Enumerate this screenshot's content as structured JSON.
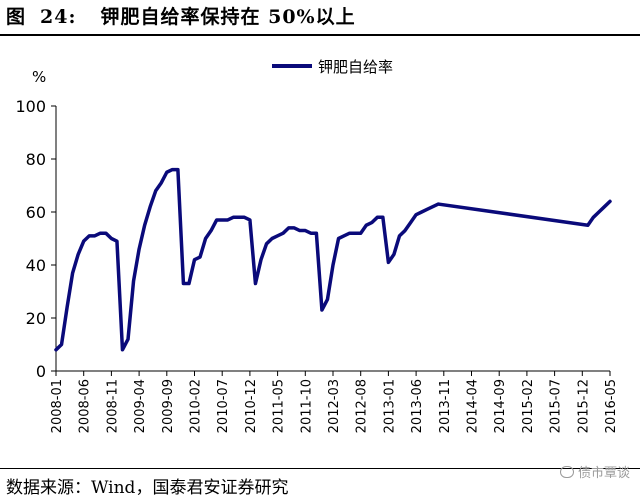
{
  "header": {
    "figure_label": "图",
    "figure_number": "24:",
    "title_text": "钾肥自给率保持在 50%以上"
  },
  "footer": {
    "source": "数据来源：Wind，国泰君安证券研究",
    "watermark": "债市覃谈"
  },
  "colors": {
    "series": "#0a0a7a",
    "axis": "#000000"
  },
  "chart_data": {
    "type": "line",
    "title": "",
    "xlabel": "",
    "ylabel": "%",
    "ylim": [
      0,
      100
    ],
    "yticks": [
      0,
      20,
      40,
      60,
      80,
      100
    ],
    "grid": false,
    "legend_position": "top-center",
    "xtick_labels": [
      "2008-01",
      "2008-06",
      "2008-11",
      "2009-04",
      "2009-09",
      "2010-02",
      "2010-07",
      "2010-12",
      "2011-05",
      "2011-10",
      "2012-03",
      "2012-08",
      "2013-01",
      "2013-06",
      "2013-11",
      "2014-04",
      "2014-09",
      "2015-02",
      "2015-07",
      "2015-12",
      "2016-05"
    ],
    "series": [
      {
        "name": "钾肥自给率",
        "color": "#0a0a7a",
        "points": [
          [
            "2008-01",
            8
          ],
          [
            "2008-02",
            10
          ],
          [
            "2008-03",
            24
          ],
          [
            "2008-04",
            37
          ],
          [
            "2008-05",
            44
          ],
          [
            "2008-06",
            49
          ],
          [
            "2008-07",
            51
          ],
          [
            "2008-08",
            51
          ],
          [
            "2008-09",
            52
          ],
          [
            "2008-10",
            52
          ],
          [
            "2008-11",
            50
          ],
          [
            "2008-12",
            49
          ],
          [
            "2009-01",
            8
          ],
          [
            "2009-02",
            12
          ],
          [
            "2009-03",
            34
          ],
          [
            "2009-04",
            46
          ],
          [
            "2009-05",
            55
          ],
          [
            "2009-06",
            62
          ],
          [
            "2009-07",
            68
          ],
          [
            "2009-08",
            71
          ],
          [
            "2009-09",
            75
          ],
          [
            "2009-10",
            76
          ],
          [
            "2009-11",
            76
          ],
          [
            "2009-12",
            33
          ],
          [
            "2010-01",
            33
          ],
          [
            "2010-02",
            42
          ],
          [
            "2010-03",
            43
          ],
          [
            "2010-04",
            50
          ],
          [
            "2010-05",
            53
          ],
          [
            "2010-06",
            57
          ],
          [
            "2010-07",
            57
          ],
          [
            "2010-08",
            57
          ],
          [
            "2010-09",
            58
          ],
          [
            "2010-10",
            58
          ],
          [
            "2010-11",
            58
          ],
          [
            "2010-12",
            57
          ],
          [
            "2011-01",
            33
          ],
          [
            "2011-02",
            42
          ],
          [
            "2011-03",
            48
          ],
          [
            "2011-04",
            50
          ],
          [
            "2011-05",
            51
          ],
          [
            "2011-06",
            52
          ],
          [
            "2011-07",
            54
          ],
          [
            "2011-08",
            54
          ],
          [
            "2011-09",
            53
          ],
          [
            "2011-10",
            53
          ],
          [
            "2011-11",
            52
          ],
          [
            "2011-12",
            52
          ],
          [
            "2012-01",
            23
          ],
          [
            "2012-02",
            27
          ],
          [
            "2012-03",
            40
          ],
          [
            "2012-04",
            50
          ],
          [
            "2012-05",
            51
          ],
          [
            "2012-06",
            52
          ],
          [
            "2012-07",
            52
          ],
          [
            "2012-08",
            52
          ],
          [
            "2012-09",
            55
          ],
          [
            "2012-10",
            56
          ],
          [
            "2012-11",
            58
          ],
          [
            "2012-12",
            58
          ],
          [
            "2013-01",
            41
          ],
          [
            "2013-02",
            44
          ],
          [
            "2013-03",
            51
          ],
          [
            "2013-04",
            53
          ],
          [
            "2013-05",
            56
          ],
          [
            "2013-06",
            59
          ],
          [
            "2013-07",
            60
          ],
          [
            "2013-08",
            61
          ],
          [
            "2013-09",
            62
          ],
          [
            "2013-10",
            63
          ],
          [
            "2016-01",
            55
          ],
          [
            "2016-02",
            58
          ],
          [
            "2016-03",
            60
          ],
          [
            "2016-04",
            62
          ],
          [
            "2016-05",
            64
          ]
        ]
      }
    ]
  }
}
